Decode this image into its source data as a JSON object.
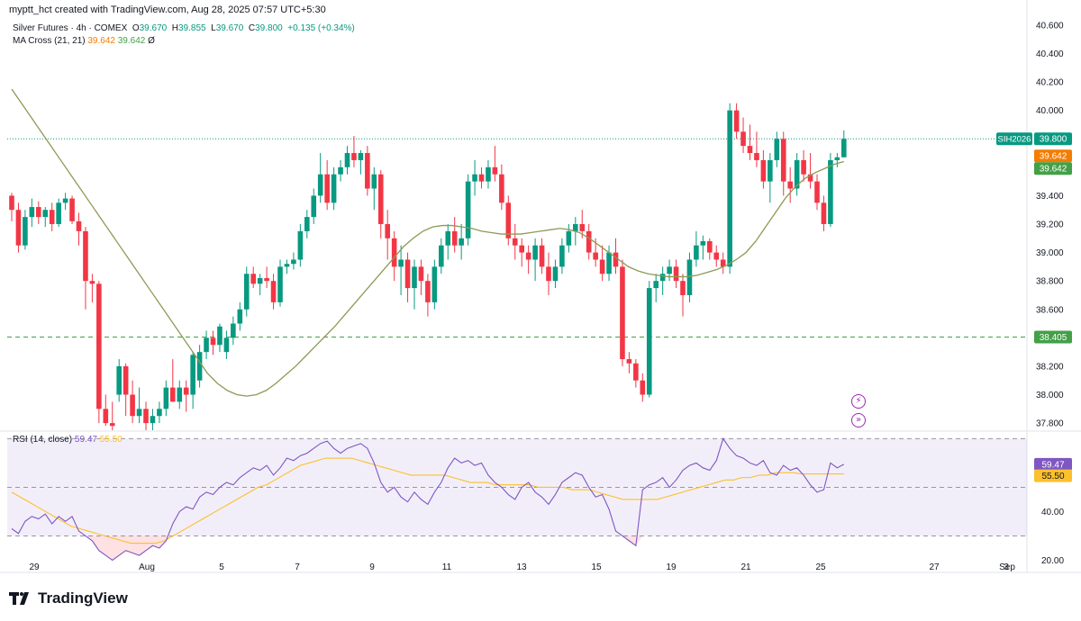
{
  "credit": "myptt_hct created with TradingView.com, Aug 28, 2025 07:57 UTC+5:30",
  "legend": {
    "symbol": "Silver Futures · 4h · COMEX",
    "o_label": "O",
    "o": "39.670",
    "h_label": "H",
    "h": "39.855",
    "l_label": "L",
    "l": "39.670",
    "c_label": "C",
    "c": "39.800",
    "chg": "+0.135 (+0.34%)",
    "ma_name": "MA Cross (21, 21)",
    "ma_a": "39.642",
    "ma_b": "39.642",
    "ma_extra": "Ø"
  },
  "rsi_legend": {
    "name": "RSI (14, close)",
    "rsi": "59.47",
    "sma": "55.50"
  },
  "footer_logo": "TradingView",
  "icons": {
    "lightning": "lightning-icon",
    "forward": "forward-icon"
  },
  "colors": {
    "up": "#089981",
    "down": "#f23645",
    "ma": "#8d9a56",
    "rsi": "#7e57c2",
    "rsi_ma": "#fbc02d",
    "price_line": "#089981",
    "support": "#43a047"
  },
  "chart_data": [
    {
      "type": "candlestick",
      "title": "Silver Futures · 4h · COMEX",
      "ylim": [
        37.75,
        40.65
      ],
      "yticks": [
        "40.600",
        "40.400",
        "40.200",
        "40.000",
        "39.800",
        "39.600",
        "39.400",
        "39.200",
        "39.000",
        "38.800",
        "38.600",
        "38.400",
        "38.200",
        "38.000",
        "37.800"
      ],
      "x_labels": [
        "29",
        "Aug",
        "5",
        "7",
        "9",
        "11",
        "13",
        "15",
        "19",
        "21",
        "25",
        "27",
        "Sep",
        "3"
      ],
      "badges": [
        {
          "label": "SIH2026",
          "value": "39.800",
          "color": "#089981"
        },
        {
          "label": "",
          "value": "39.642",
          "color": "#f57c00"
        },
        {
          "label": "",
          "value": "39.642",
          "color": "#43a047"
        },
        {
          "label": "",
          "value": "38.405",
          "color": "#43a047"
        }
      ],
      "horizontal_lines": [
        {
          "value": 39.8,
          "style": "dotted",
          "color": "#089981"
        },
        {
          "value": 38.405,
          "style": "dashed",
          "color": "#43a047"
        }
      ],
      "ohlc": [
        [
          39.4,
          39.42,
          39.22,
          39.3
        ],
        [
          39.3,
          39.35,
          39.0,
          39.05
        ],
        [
          39.05,
          39.3,
          39.02,
          39.25
        ],
        [
          39.25,
          39.38,
          39.18,
          39.32
        ],
        [
          39.32,
          39.36,
          39.2,
          39.25
        ],
        [
          39.25,
          39.32,
          39.18,
          39.3
        ],
        [
          39.3,
          39.35,
          39.15,
          39.2
        ],
        [
          39.2,
          39.38,
          39.18,
          39.35
        ],
        [
          39.35,
          39.42,
          39.3,
          39.38
        ],
        [
          39.38,
          39.4,
          39.2,
          39.22
        ],
        [
          39.22,
          39.28,
          39.05,
          39.15
        ],
        [
          39.15,
          39.18,
          38.6,
          38.8
        ],
        [
          38.8,
          38.85,
          38.65,
          38.78
        ],
        [
          38.78,
          38.8,
          37.8,
          37.9
        ],
        [
          37.9,
          38.0,
          37.78,
          37.8
        ],
        [
          37.8,
          37.95,
          37.75,
          37.78
        ],
        [
          38.0,
          38.25,
          37.95,
          38.2
        ],
        [
          38.2,
          38.22,
          37.85,
          38.0
        ],
        [
          38.0,
          38.1,
          37.8,
          37.85
        ],
        [
          37.85,
          38.05,
          37.8,
          37.9
        ],
        [
          37.9,
          37.95,
          37.75,
          37.8
        ],
        [
          37.8,
          37.9,
          37.75,
          37.85
        ],
        [
          37.85,
          37.95,
          37.8,
          37.9
        ],
        [
          37.9,
          38.1,
          37.85,
          38.05
        ],
        [
          38.05,
          38.25,
          37.95,
          37.95
        ],
        [
          37.95,
          38.1,
          37.9,
          38.05
        ],
        [
          38.05,
          38.1,
          37.88,
          38.0
        ],
        [
          38.0,
          38.3,
          37.9,
          38.28
        ],
        [
          38.1,
          38.35,
          38.05,
          38.3
        ],
        [
          38.3,
          38.45,
          38.25,
          38.4
        ],
        [
          38.4,
          38.45,
          38.28,
          38.35
        ],
        [
          38.35,
          38.5,
          38.3,
          38.48
        ],
        [
          38.3,
          38.45,
          38.25,
          38.4
        ],
        [
          38.4,
          38.55,
          38.35,
          38.5
        ],
        [
          38.5,
          38.65,
          38.45,
          38.6
        ],
        [
          38.6,
          38.9,
          38.55,
          38.85
        ],
        [
          38.85,
          38.9,
          38.75,
          38.78
        ],
        [
          38.78,
          38.85,
          38.7,
          38.82
        ],
        [
          38.82,
          38.9,
          38.75,
          38.8
        ],
        [
          38.8,
          38.85,
          38.6,
          38.65
        ],
        [
          38.65,
          38.95,
          38.62,
          38.9
        ],
        [
          38.9,
          38.95,
          38.85,
          38.92
        ],
        [
          38.92,
          39.0,
          38.88,
          38.95
        ],
        [
          38.95,
          39.2,
          38.9,
          39.15
        ],
        [
          39.15,
          39.3,
          39.1,
          39.25
        ],
        [
          39.25,
          39.45,
          39.2,
          39.4
        ],
        [
          39.4,
          39.7,
          39.35,
          39.55
        ],
        [
          39.55,
          39.65,
          39.3,
          39.35
        ],
        [
          39.35,
          39.6,
          39.3,
          39.55
        ],
        [
          39.55,
          39.65,
          39.5,
          39.6
        ],
        [
          39.6,
          39.75,
          39.55,
          39.7
        ],
        [
          39.7,
          39.82,
          39.6,
          39.65
        ],
        [
          39.65,
          39.72,
          39.55,
          39.7
        ],
        [
          39.7,
          39.75,
          39.4,
          39.45
        ],
        [
          39.45,
          39.6,
          39.3,
          39.55
        ],
        [
          39.55,
          39.58,
          39.1,
          39.2
        ],
        [
          39.2,
          39.3,
          38.95,
          39.1
        ],
        [
          39.1,
          39.15,
          38.8,
          38.9
        ],
        [
          38.9,
          39.05,
          38.7,
          38.95
        ],
        [
          38.95,
          39.0,
          38.65,
          38.75
        ],
        [
          38.75,
          38.95,
          38.6,
          38.9
        ],
        [
          38.9,
          38.95,
          38.7,
          38.8
        ],
        [
          38.8,
          38.85,
          38.55,
          38.65
        ],
        [
          38.65,
          38.95,
          38.6,
          38.9
        ],
        [
          38.9,
          39.1,
          38.85,
          39.05
        ],
        [
          39.05,
          39.2,
          38.95,
          39.15
        ],
        [
          39.15,
          39.25,
          39.0,
          39.05
        ],
        [
          39.05,
          39.2,
          38.95,
          39.1
        ],
        [
          39.1,
          39.55,
          39.05,
          39.5
        ],
        [
          39.5,
          39.65,
          39.4,
          39.55
        ],
        [
          39.55,
          39.6,
          39.45,
          39.5
        ],
        [
          39.5,
          39.65,
          39.45,
          39.6
        ],
        [
          39.6,
          39.75,
          39.5,
          39.55
        ],
        [
          39.55,
          39.62,
          39.3,
          39.35
        ],
        [
          39.35,
          39.4,
          39.05,
          39.1
        ],
        [
          39.1,
          39.2,
          38.95,
          39.05
        ],
        [
          39.05,
          39.1,
          38.9,
          39.0
        ],
        [
          39.0,
          39.05,
          38.85,
          38.95
        ],
        [
          38.95,
          39.1,
          38.8,
          39.05
        ],
        [
          39.05,
          39.1,
          38.85,
          38.9
        ],
        [
          38.9,
          39.0,
          38.7,
          38.8
        ],
        [
          38.8,
          38.95,
          38.75,
          38.9
        ],
        [
          38.9,
          39.1,
          38.85,
          39.05
        ],
        [
          39.05,
          39.2,
          39.0,
          39.15
        ],
        [
          39.15,
          39.25,
          39.05,
          39.2
        ],
        [
          39.2,
          39.3,
          39.1,
          39.15
        ],
        [
          39.15,
          39.2,
          38.95,
          39.0
        ],
        [
          39.0,
          39.1,
          38.9,
          38.95
        ],
        [
          38.95,
          39.05,
          38.8,
          38.85
        ],
        [
          38.85,
          39.05,
          38.8,
          39.0
        ],
        [
          39.0,
          39.1,
          38.85,
          38.9
        ],
        [
          38.9,
          38.95,
          38.2,
          38.25
        ],
        [
          38.25,
          38.3,
          38.15,
          38.22
        ],
        [
          38.22,
          38.25,
          38.05,
          38.1
        ],
        [
          38.1,
          38.15,
          37.95,
          38.0
        ],
        [
          38.0,
          38.8,
          37.98,
          38.75
        ],
        [
          38.75,
          38.85,
          38.65,
          38.8
        ],
        [
          38.8,
          38.9,
          38.7,
          38.85
        ],
        [
          38.85,
          38.95,
          38.8,
          38.9
        ],
        [
          38.9,
          38.95,
          38.75,
          38.8
        ],
        [
          38.8,
          38.85,
          38.55,
          38.7
        ],
        [
          38.7,
          39.0,
          38.65,
          38.95
        ],
        [
          38.95,
          39.15,
          38.9,
          39.05
        ],
        [
          39.05,
          39.12,
          38.95,
          39.08
        ],
        [
          39.08,
          39.1,
          38.95,
          39.0
        ],
        [
          39.0,
          39.05,
          38.9,
          38.95
        ],
        [
          38.95,
          39.0,
          38.85,
          38.9
        ],
        [
          38.9,
          40.05,
          38.85,
          40.0
        ],
        [
          40.0,
          40.05,
          39.8,
          39.85
        ],
        [
          39.85,
          39.95,
          39.7,
          39.75
        ],
        [
          39.75,
          39.9,
          39.65,
          39.7
        ],
        [
          39.7,
          39.85,
          39.6,
          39.65
        ],
        [
          39.65,
          39.72,
          39.45,
          39.5
        ],
        [
          39.5,
          39.7,
          39.35,
          39.65
        ],
        [
          39.65,
          39.85,
          39.6,
          39.8
        ],
        [
          39.8,
          39.85,
          39.4,
          39.5
        ],
        [
          39.5,
          39.6,
          39.35,
          39.45
        ],
        [
          39.45,
          39.7,
          39.4,
          39.65
        ],
        [
          39.65,
          39.72,
          39.5,
          39.55
        ],
        [
          39.55,
          39.7,
          39.45,
          39.5
        ],
        [
          39.5,
          39.55,
          39.3,
          39.35
        ],
        [
          39.35,
          39.4,
          39.15,
          39.2
        ],
        [
          39.2,
          39.7,
          39.18,
          39.65
        ],
        [
          39.65,
          39.7,
          39.6,
          39.67
        ],
        [
          39.67,
          39.86,
          39.67,
          39.8
        ]
      ],
      "ma_values": [
        40.15,
        40.05,
        39.95,
        39.85,
        39.75,
        39.65,
        39.55,
        39.45,
        39.35,
        39.25,
        39.15,
        39.05,
        38.95,
        38.85,
        38.75,
        38.65,
        38.55,
        38.45,
        38.35,
        38.25,
        38.15,
        38.08,
        38.03,
        38.0,
        37.99,
        38.0,
        38.03,
        38.08,
        38.14,
        38.2,
        38.27,
        38.34,
        38.41,
        38.48,
        38.56,
        38.64,
        38.72,
        38.8,
        38.88,
        38.96,
        39.04,
        39.1,
        39.15,
        39.18,
        39.19,
        39.19,
        39.18,
        39.17,
        39.15,
        39.14,
        39.13,
        39.13,
        39.13,
        39.14,
        39.15,
        39.16,
        39.17,
        39.16,
        39.14,
        39.1,
        39.05,
        39.0,
        38.95,
        38.9,
        38.87,
        38.85,
        38.84,
        38.83,
        38.83,
        38.83,
        38.84,
        38.86,
        38.88,
        38.91,
        38.95,
        39.0,
        39.08,
        39.18,
        39.28,
        39.38,
        39.46,
        39.52,
        39.56,
        39.59,
        39.62,
        39.64
      ],
      "ma_start_index": 0
    },
    {
      "type": "line",
      "title": "RSI (14, close)",
      "ylim": [
        15,
        72
      ],
      "yticks": [
        "40.00",
        "20.00"
      ],
      "bands": {
        "upper": 70,
        "middle": 50,
        "lower": 30
      },
      "badges": [
        {
          "value": "59.47",
          "color": "#7e57c2"
        },
        {
          "value": "55.50",
          "color": "#fbc02d"
        }
      ],
      "series": [
        {
          "name": "RSI",
          "values": [
            33,
            31,
            36,
            38,
            37,
            39,
            35,
            38,
            36,
            38,
            32,
            30,
            28,
            24,
            22,
            20,
            22,
            24,
            23,
            22,
            24,
            26,
            25,
            28,
            35,
            40,
            42,
            41,
            46,
            48,
            47,
            50,
            52,
            51,
            54,
            56,
            58,
            57,
            59,
            55,
            58,
            62,
            61,
            63,
            64,
            66,
            68,
            69,
            66,
            64,
            66,
            67,
            68,
            66,
            60,
            52,
            48,
            50,
            46,
            44,
            48,
            45,
            43,
            48,
            52,
            58,
            62,
            60,
            61,
            59,
            60,
            55,
            52,
            50,
            47,
            45,
            50,
            52,
            48,
            46,
            43,
            47,
            52,
            54,
            56,
            55,
            50,
            46,
            47,
            41,
            32,
            30,
            28,
            26,
            49,
            51,
            52,
            54,
            50,
            53,
            57,
            59,
            60,
            58,
            57,
            61,
            70,
            66,
            63,
            62,
            60,
            59,
            61,
            56,
            55,
            59,
            57,
            58,
            55,
            51,
            48,
            49,
            60,
            58,
            59.47
          ]
        },
        {
          "name": "RSI-based MA",
          "values": [
            48,
            46,
            44,
            42,
            40,
            38,
            36,
            34,
            33,
            32,
            31,
            30,
            29,
            28,
            27,
            27,
            27,
            27,
            28,
            30,
            32,
            34,
            36,
            38,
            40,
            42,
            44,
            46,
            48,
            50,
            51,
            53,
            55,
            57,
            59,
            60,
            61,
            62,
            62,
            62,
            62,
            61,
            60,
            59,
            58,
            57,
            56,
            55,
            55,
            55,
            55,
            55,
            54,
            53,
            52,
            52,
            52,
            51,
            51,
            51,
            51,
            51,
            50,
            50,
            50,
            50,
            49,
            49,
            49,
            48,
            47,
            46,
            45,
            45,
            45,
            45,
            45,
            46,
            47,
            48,
            49,
            50,
            51,
            52,
            53,
            53,
            54,
            54,
            55,
            55,
            56,
            56,
            56,
            55.5,
            55.5,
            55.5,
            55.5,
            55.5,
            55.5
          ]
        }
      ]
    }
  ]
}
